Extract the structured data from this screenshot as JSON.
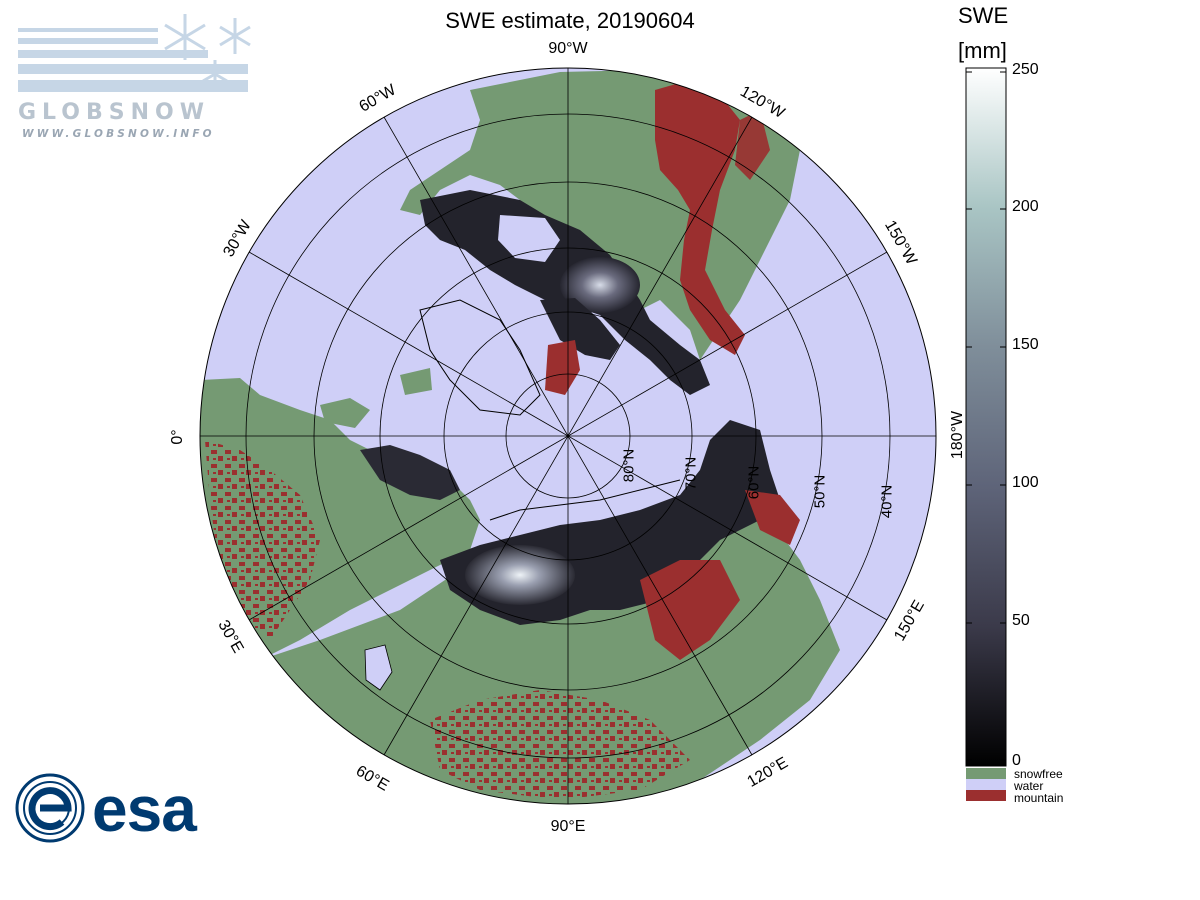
{
  "map": {
    "title": "SWE estimate, 20190604",
    "projection": "north polar stereographic",
    "colors": {
      "water": "#cfcff7",
      "snowfree": "#759a73",
      "mountain": "#9b2f2f",
      "snow_dark": "#1f1f27",
      "coast": "#000000",
      "grid": "#000000"
    },
    "meridian_labels": [
      {
        "text": "90°W",
        "lon": "90W"
      },
      {
        "text": "120°W",
        "lon": "120W"
      },
      {
        "text": "150°W",
        "lon": "150W"
      },
      {
        "text": "180°W",
        "lon": "180W"
      },
      {
        "text": "150°E",
        "lon": "150E"
      },
      {
        "text": "120°E",
        "lon": "120E"
      },
      {
        "text": "90°E",
        "lon": "90E"
      },
      {
        "text": "60°E",
        "lon": "60E"
      },
      {
        "text": "30°E",
        "lon": "30E"
      },
      {
        "text": "0°",
        "lon": "0"
      },
      {
        "text": "30°W",
        "lon": "30W"
      },
      {
        "text": "60°W",
        "lon": "60W"
      }
    ],
    "parallel_labels": [
      {
        "text": "80°N",
        "lat": 80
      },
      {
        "text": "70°N",
        "lat": 70
      },
      {
        "text": "60°N",
        "lat": 60
      },
      {
        "text": "50°N",
        "lat": 50
      },
      {
        "text": "40°N",
        "lat": 40
      }
    ]
  },
  "colorbar": {
    "title": "SWE",
    "unit": "[mm]",
    "range": [
      0,
      250
    ],
    "ticks": [
      "250",
      "200",
      "150",
      "100",
      "50",
      "0"
    ],
    "categories": [
      {
        "label": "snowfree",
        "color": "#759a73"
      },
      {
        "label": "water",
        "color": "#cfcff7"
      },
      {
        "label": "mountain",
        "color": "#9b2f2f"
      }
    ]
  },
  "logos": {
    "globsnow_name": "GLOBSNOW",
    "globsnow_url": "WWW.GLOBSNOW.INFO",
    "esa_name": "esa"
  }
}
